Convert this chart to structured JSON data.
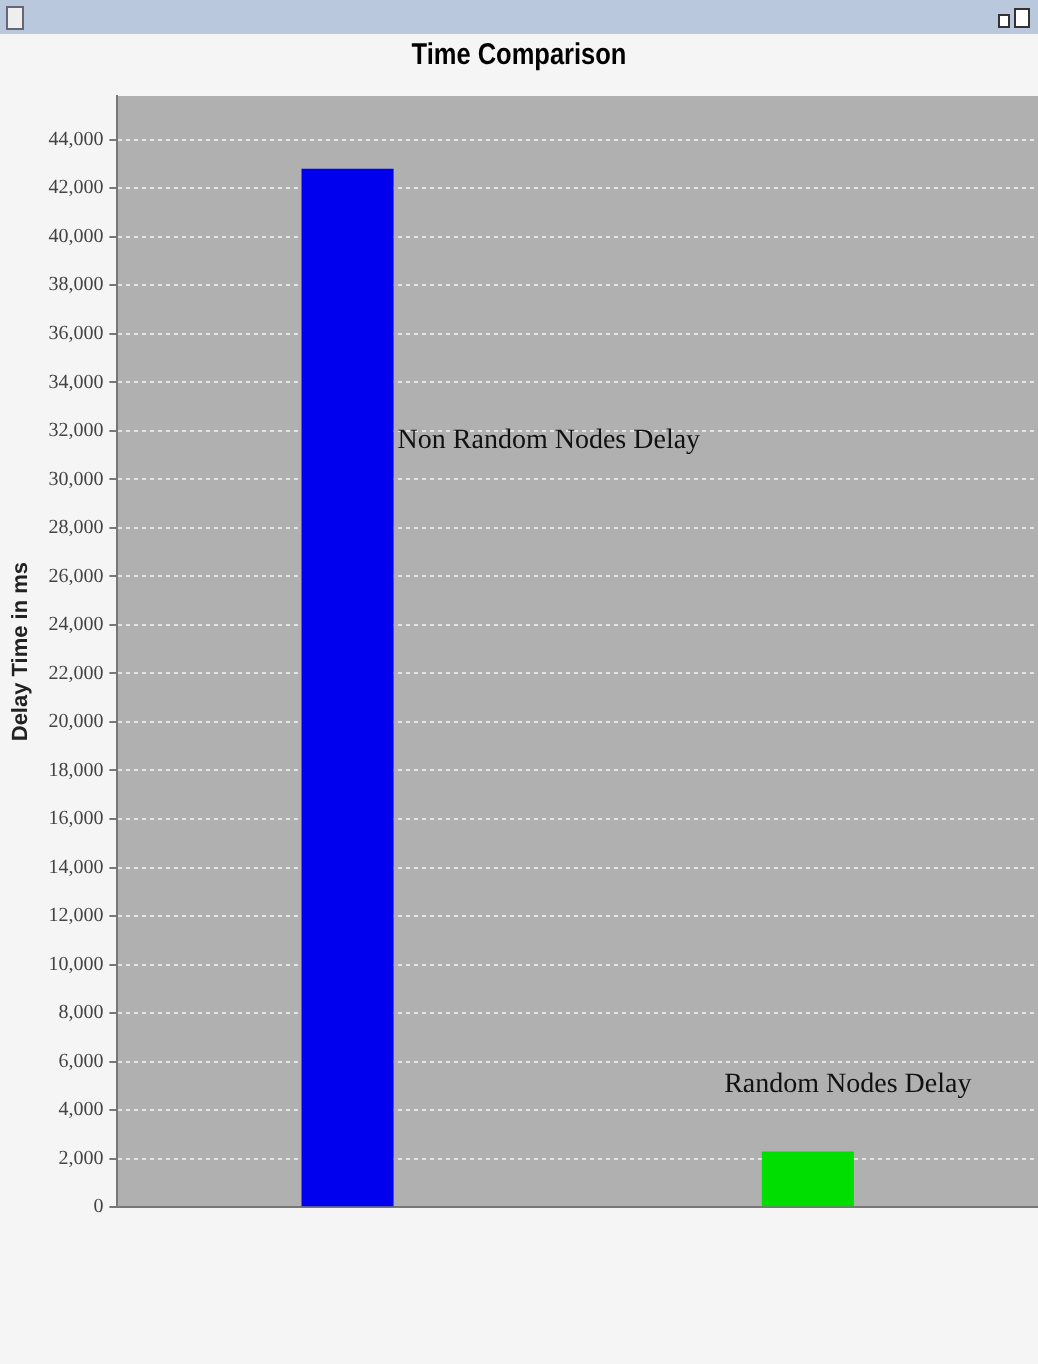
{
  "chart_data": {
    "type": "bar",
    "title": "Time Comparison",
    "ylabel": "Delay Time in ms",
    "categories": [
      null,
      null
    ],
    "series": [
      {
        "color": "#0000ee",
        "values": [
          42800,
          null
        ]
      },
      {
        "color": "#00dd00",
        "values": [
          null,
          2300
        ]
      }
    ],
    "ylim": [
      0,
      45800
    ],
    "yticks": [
      {
        "value": 0,
        "label": "0"
      },
      {
        "value": 2000,
        "label": "2,000"
      },
      {
        "value": 4000,
        "label": "4,000"
      },
      {
        "value": 6000,
        "label": "6,000"
      },
      {
        "value": 8000,
        "label": "8,000"
      },
      {
        "value": 10000,
        "label": "10,000"
      },
      {
        "value": 12000,
        "label": "12,000"
      },
      {
        "value": 14000,
        "label": "14,000"
      },
      {
        "value": 16000,
        "label": "16,000"
      },
      {
        "value": 18000,
        "label": "18,000"
      },
      {
        "value": 20000,
        "label": "20,000"
      },
      {
        "value": 22000,
        "label": "22,000"
      },
      {
        "value": 24000,
        "label": "24,000"
      },
      {
        "value": 26000,
        "label": "26,000"
      },
      {
        "value": 28000,
        "label": "28,000"
      },
      {
        "value": 30000,
        "label": "30,000"
      },
      {
        "value": 32000,
        "label": "32,000"
      },
      {
        "value": 34000,
        "label": "34,000"
      },
      {
        "value": 36000,
        "label": "36,000"
      },
      {
        "value": 38000,
        "label": "38,000"
      },
      {
        "value": 40000,
        "label": "40,000"
      },
      {
        "value": 42000,
        "label": "42,000"
      },
      {
        "value": 44000,
        "label": "44,000"
      }
    ],
    "annotations": [
      "Non Random Nodes Delay",
      "Random Nodes Delay"
    ],
    "grid": "y",
    "legend": false
  }
}
